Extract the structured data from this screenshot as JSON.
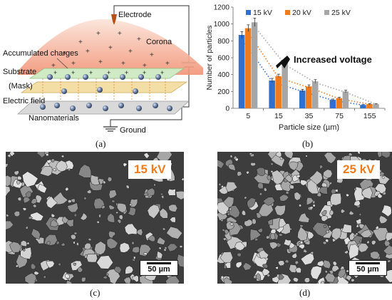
{
  "figure": {
    "panel_a": {
      "label": "(a)",
      "labels": {
        "electrode": "Electrode",
        "corona": "Corona",
        "accumulated_charges": "Accumulated charges",
        "substrate": "Substrate",
        "mask": "(Mask)",
        "electric_field": "Electric field",
        "nanomaterials": "Nanomaterials",
        "ground": "Ground"
      }
    },
    "panel_b": {
      "label": "(b)",
      "annotation": "Increased voltage"
    },
    "panel_c": {
      "label": "(c)",
      "voltage": "15 kV",
      "scale": "50 µm"
    },
    "panel_d": {
      "label": "(d)",
      "voltage": "25 kV",
      "scale": "50 µm"
    }
  },
  "chart_data": {
    "type": "bar",
    "xlabel": "Particle size (µm)",
    "ylabel": "Number of particles",
    "categories": [
      "5",
      "15",
      "35",
      "75",
      "155"
    ],
    "ylim": [
      0,
      1200
    ],
    "yticks": [
      0,
      200,
      400,
      600,
      800,
      1000,
      1200
    ],
    "legend_position": "top",
    "series": [
      {
        "name": "15 kV",
        "color": "#2f6fd0",
        "values": [
          870,
          330,
          210,
          100,
          40
        ],
        "errors": [
          40,
          25,
          15,
          10,
          5
        ]
      },
      {
        "name": "20 kV",
        "color": "#f07b1c",
        "values": [
          950,
          380,
          260,
          120,
          50
        ],
        "errors": [
          40,
          25,
          18,
          12,
          6
        ]
      },
      {
        "name": "25 kV",
        "color": "#a6a6a6",
        "values": [
          1020,
          545,
          320,
          200,
          50
        ],
        "errors": [
          50,
          30,
          20,
          15,
          6
        ]
      }
    ],
    "trendlines": "dotted exponential fit per series",
    "annotation_arrow": "points toward higher bars"
  }
}
